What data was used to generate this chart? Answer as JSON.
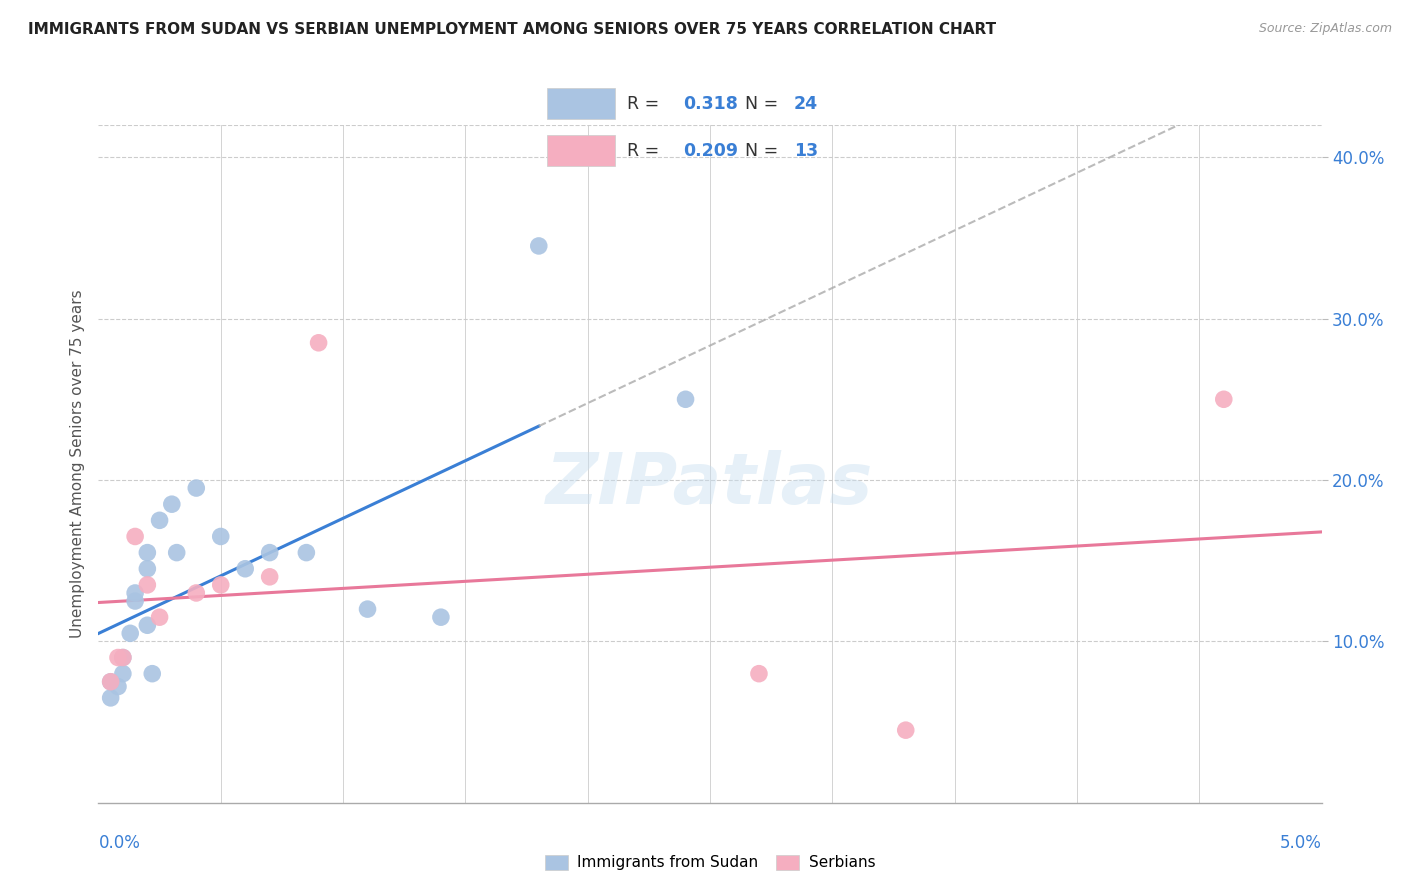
{
  "title": "IMMIGRANTS FROM SUDAN VS SERBIAN UNEMPLOYMENT AMONG SENIORS OVER 75 YEARS CORRELATION CHART",
  "source": "Source: ZipAtlas.com",
  "ylabel": "Unemployment Among Seniors over 75 years",
  "yticks": [
    0.1,
    0.2,
    0.3,
    0.4
  ],
  "ytick_labels": [
    "10.0%",
    "20.0%",
    "30.0%",
    "40.0%"
  ],
  "xlim": [
    0.0,
    0.05
  ],
  "ylim": [
    0.0,
    0.42
  ],
  "sudan_color": "#aac4e2",
  "serbian_color": "#f5aec0",
  "trend_sudan_color": "#3a7fd5",
  "trend_serbian_color": "#e8789a",
  "r_sudan": "0.318",
  "n_sudan": "24",
  "r_serbian": "0.209",
  "n_serbian": "13",
  "sudan_x": [
    0.0005,
    0.0005,
    0.0008,
    0.001,
    0.001,
    0.0013,
    0.0015,
    0.0015,
    0.002,
    0.002,
    0.002,
    0.0022,
    0.0025,
    0.003,
    0.0032,
    0.004,
    0.005,
    0.006,
    0.007,
    0.0085,
    0.011,
    0.014,
    0.018,
    0.024
  ],
  "sudan_y": [
    0.065,
    0.075,
    0.072,
    0.08,
    0.09,
    0.105,
    0.125,
    0.13,
    0.11,
    0.145,
    0.155,
    0.08,
    0.175,
    0.185,
    0.155,
    0.195,
    0.165,
    0.145,
    0.155,
    0.155,
    0.12,
    0.115,
    0.345,
    0.25
  ],
  "serbian_x": [
    0.0005,
    0.0008,
    0.001,
    0.0015,
    0.002,
    0.0025,
    0.004,
    0.005,
    0.007,
    0.009,
    0.027,
    0.033,
    0.046
  ],
  "serbian_y": [
    0.075,
    0.09,
    0.09,
    0.165,
    0.135,
    0.115,
    0.13,
    0.135,
    0.14,
    0.285,
    0.08,
    0.045,
    0.25
  ],
  "background_color": "#ffffff",
  "watermark": "ZIPatlas",
  "legend_labels": [
    "Immigrants from Sudan",
    "Serbians"
  ],
  "trend_sudan_solid_end": 0.018,
  "trend_sudan_dash_start": 0.018
}
